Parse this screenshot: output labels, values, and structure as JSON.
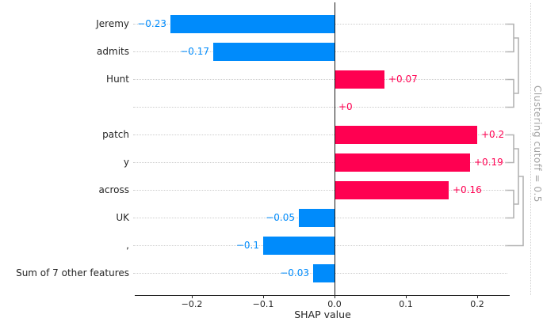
{
  "chart_data": {
    "type": "bar",
    "orientation": "horizontal",
    "xlabel": "SHAP value",
    "title": "",
    "features": [
      {
        "label": "Jeremy",
        "value": -0.23,
        "display": "−0.23"
      },
      {
        "label": "admits",
        "value": -0.17,
        "display": "−0.17"
      },
      {
        "label": "Hunt",
        "value": 0.07,
        "display": "+0.07"
      },
      {
        "label": "",
        "value": 0.0,
        "display": "+0"
      },
      {
        "label": "patch",
        "value": 0.2,
        "display": "+0.2"
      },
      {
        "label": "y",
        "value": 0.19,
        "display": "+0.19"
      },
      {
        "label": "across",
        "value": 0.16,
        "display": "+0.16"
      },
      {
        "label": "UK",
        "value": -0.05,
        "display": "−0.05"
      },
      {
        "label": ",",
        "value": -0.1,
        "display": "−0.1"
      },
      {
        "label": "Sum of 7 other features",
        "value": -0.03,
        "display": "−0.03"
      }
    ],
    "x_ticks": [
      {
        "value": -0.2,
        "label": "−0.2"
      },
      {
        "value": -0.1,
        "label": "−0.1"
      },
      {
        "value": 0.0,
        "label": "0.0"
      },
      {
        "value": 0.1,
        "label": "0.1"
      },
      {
        "value": 0.2,
        "label": "0.2"
      }
    ],
    "xlim": [
      -0.28,
      0.245
    ],
    "grid": "horizontal-dotted",
    "colors": {
      "positive": "#ff0051",
      "negative": "#008bfb",
      "dendrogram": "#b3b3b3",
      "axis": "#262626"
    },
    "cutoff_label": "Clustering cutoff = 0.5",
    "dendrogram": {
      "merges": [
        {
          "a": {
            "row": 0
          },
          "b": {
            "row": 1
          },
          "depth": 1
        },
        {
          "a": {
            "row": 2
          },
          "b": {
            "row": 3
          },
          "depth": 1
        },
        {
          "a": {
            "merge": 0
          },
          "b": {
            "merge": 1
          },
          "depth": 2
        },
        {
          "a": {
            "row": 4
          },
          "b": {
            "row": 5
          },
          "depth": 1
        },
        {
          "a": {
            "row": 6
          },
          "b": {
            "row": 7
          },
          "depth": 1
        },
        {
          "a": {
            "merge": 3
          },
          "b": {
            "merge": 4
          },
          "depth": 2
        },
        {
          "a": {
            "merge": 5
          },
          "b": {
            "row": 8
          },
          "depth": 3
        }
      ]
    }
  }
}
